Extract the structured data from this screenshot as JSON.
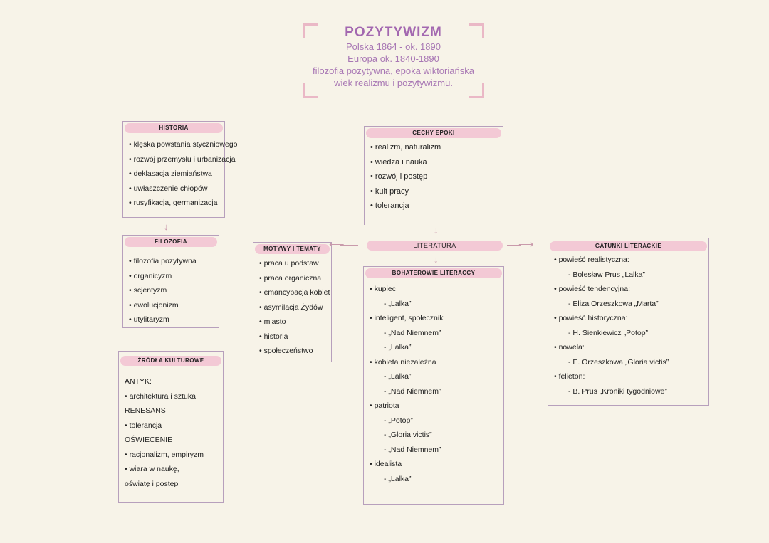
{
  "title": {
    "main": "POZYTYWIZM",
    "lines": [
      "Polska 1864 - ok. 1890",
      "Europa ok. 1840-1890",
      "filozofia pozytywna, epoka wiktoriańska",
      "wiek realizmu i pozytywizmu."
    ]
  },
  "colors": {
    "accent": "#a368b0",
    "header_fill": "#f3c9d5",
    "border": "#b79fbc",
    "background": "#f7f3e8"
  },
  "boxes": {
    "historia": {
      "header": "HISTORIA",
      "items": [
        {
          "t": "• klęska powstania styczniowego"
        },
        {
          "t": "• rozwój przemysłu i urbanizacja"
        },
        {
          "t": "• deklasacja ziemiaństwa"
        },
        {
          "t": "• uwłaszczenie chłopów"
        },
        {
          "t": "• rusyfikacja, germanizacja"
        }
      ]
    },
    "filozofia": {
      "header": "FILOZOFIA",
      "items": [
        {
          "t": "• filozofia pozytywna"
        },
        {
          "t": "• organicyzm"
        },
        {
          "t": "• scjentyzm"
        },
        {
          "t": "• ewolucjonizm"
        },
        {
          "t": "• utylitaryzm"
        }
      ]
    },
    "zrodla": {
      "header": "ŹRÓDŁA KULTUROWE",
      "items": [
        {
          "t": "ANTYK:"
        },
        {
          "t": "• architektura i sztuka"
        },
        {
          "t": "RENESANS"
        },
        {
          "t": "• tolerancja"
        },
        {
          "t": "OŚWIECENIE"
        },
        {
          "t": "• racjonalizm, empiryzm"
        },
        {
          "t": "• wiara w naukę,"
        },
        {
          "t": "oświatę i postęp"
        }
      ]
    },
    "cechy": {
      "header": "CECHY EPOKI",
      "items": [
        {
          "t": "• realizm, naturalizm"
        },
        {
          "t": "• wiedza i nauka"
        },
        {
          "t": "• rozwój i postęp"
        },
        {
          "t": "• kult pracy"
        },
        {
          "t": "• tolerancja"
        }
      ]
    },
    "literatura": {
      "header": "LITERATURA"
    },
    "motywy": {
      "header": "MOTYWY I TEMATY",
      "items": [
        {
          "t": "• praca u podstaw"
        },
        {
          "t": "• praca organiczna"
        },
        {
          "t": "• emancypacja kobiet"
        },
        {
          "t": "• asymilacja Żydów"
        },
        {
          "t": "• miasto"
        },
        {
          "t": "• historia"
        },
        {
          "t": "• społeczeństwo"
        }
      ]
    },
    "bohaterowie": {
      "header": "BOHATEROWIE LITERACCY",
      "items": [
        {
          "t": "• kupiec"
        },
        {
          "t": "- „Lalka”",
          "s": 1
        },
        {
          "t": "• inteligent, społecznik"
        },
        {
          "t": "- „Nad Niemnem”",
          "s": 1
        },
        {
          "t": "- „Lalka”",
          "s": 1
        },
        {
          "t": "• kobieta niezależna"
        },
        {
          "t": "- „Lalka”",
          "s": 1
        },
        {
          "t": "- „Nad Niemnem”",
          "s": 1
        },
        {
          "t": "• patriota"
        },
        {
          "t": "- „Potop”",
          "s": 1
        },
        {
          "t": "- „Gloria victis”",
          "s": 1
        },
        {
          "t": "- „Nad Niemnem”",
          "s": 1
        },
        {
          "t": "• idealista"
        },
        {
          "t": "- „Lalka”",
          "s": 1
        }
      ]
    },
    "gatunki": {
      "header": "GATUNKI LITERACKIE",
      "items": [
        {
          "t": "• powieść realistyczna:"
        },
        {
          "t": "- Bolesław Prus „Lalka”",
          "s": 1
        },
        {
          "t": "• powieść tendencyjna:"
        },
        {
          "t": "- Eliza Orzeszkowa „Marta”",
          "s": 1
        },
        {
          "t": "• powieść historyczna:"
        },
        {
          "t": "- H. Sienkiewicz „Potop”",
          "s": 1
        },
        {
          "t": "• nowela:"
        },
        {
          "t": "- E. Orzeszkowa „Gloria victis”",
          "s": 1
        },
        {
          "t": "• felieton:"
        },
        {
          "t": "- B. Prus „Kroniki tygodniowe”",
          "s": 1
        }
      ]
    }
  }
}
